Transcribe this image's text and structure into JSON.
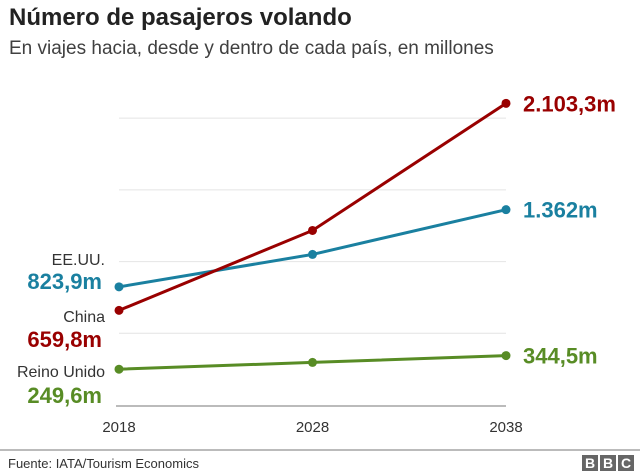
{
  "chart_data": {
    "type": "line",
    "title": "Número de pasajeros volando",
    "subtitle": "En viajes hacia, desde y dentro de cada país, en millones",
    "x": [
      "2018",
      "2028",
      "2038"
    ],
    "ylim": [
      0,
      2200
    ],
    "grid": true,
    "gridlines": [
      500,
      1000,
      1500,
      2000
    ],
    "series": [
      {
        "name": "EE.UU.",
        "values": [
          823.9,
          1050,
          1362
        ],
        "color": "#1a80a0",
        "start_label": "823,9m",
        "end_label": "1.362m"
      },
      {
        "name": "China",
        "values": [
          659.8,
          1217,
          2103.3
        ],
        "color": "#990000",
        "start_label": "659,8m",
        "end_label": "2.103,3m"
      },
      {
        "name": "Reino Unido",
        "values": [
          249.6,
          297,
          344.5
        ],
        "color": "#588c25",
        "start_label": "249,6m",
        "end_label": "344,5m"
      }
    ]
  },
  "footer": {
    "source": "Fuente: IATA/Tourism Economics",
    "logo": [
      "B",
      "B",
      "C"
    ]
  }
}
